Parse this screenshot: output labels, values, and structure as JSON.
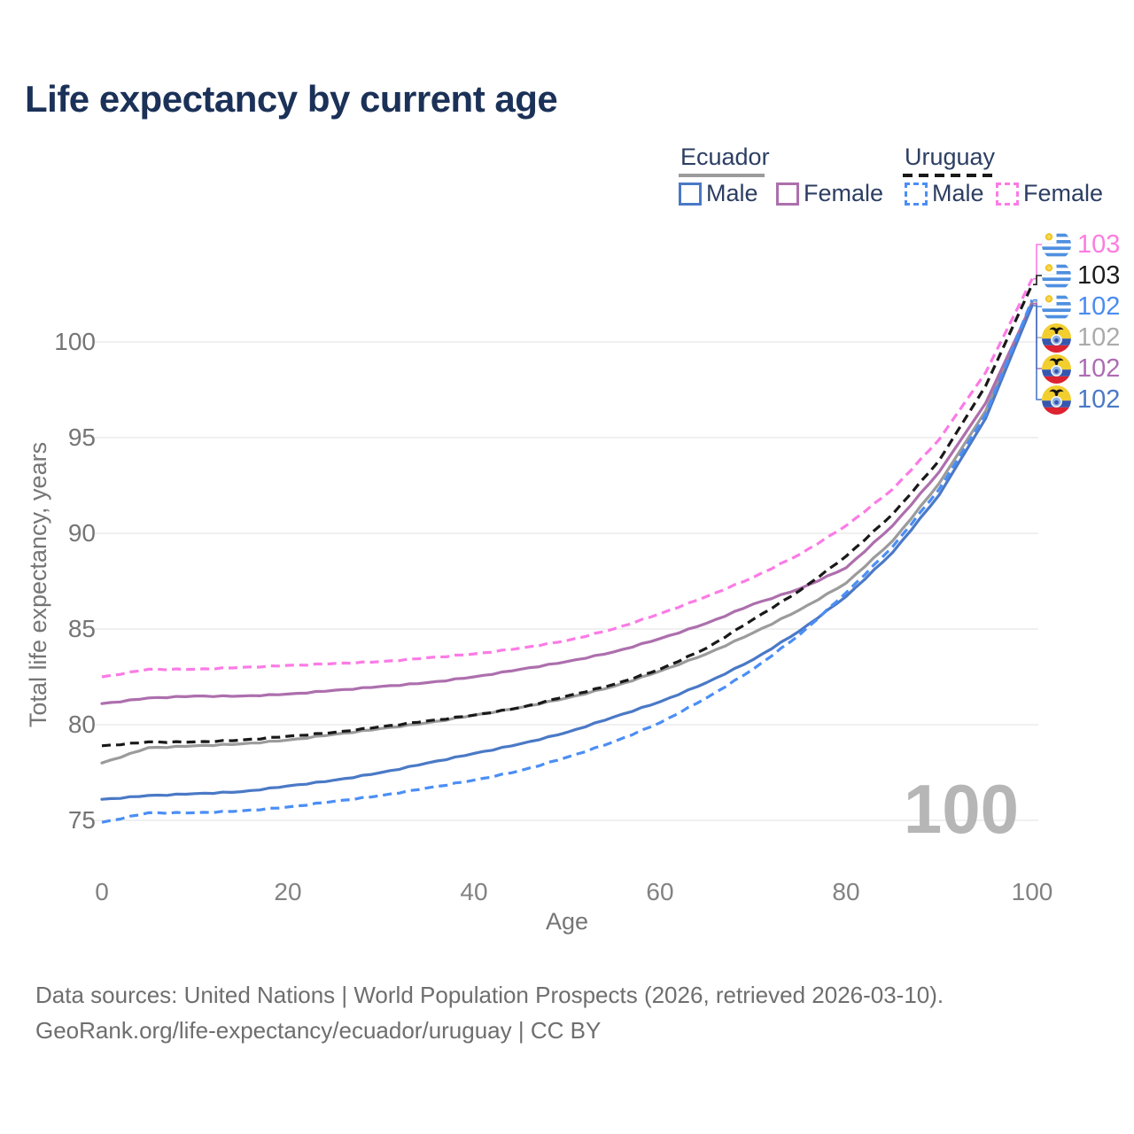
{
  "title": "Life expectancy by current age",
  "legend": {
    "groups": [
      {
        "label": "Ecuador",
        "line_style": "solid",
        "underline_color": "#9b9b9b",
        "items": [
          {
            "label": "Male",
            "color": "#4a79c6",
            "dashed": false
          },
          {
            "label": "Female",
            "color": "#ad6fad",
            "dashed": false
          }
        ]
      },
      {
        "label": "Uruguay",
        "line_style": "dashed",
        "underline_color": "#191919",
        "items": [
          {
            "label": "Male",
            "color": "#4b8ef5",
            "dashed": true
          },
          {
            "label": "Female",
            "color": "#fb7be5",
            "dashed": true
          }
        ]
      }
    ]
  },
  "chart_data": {
    "type": "line",
    "title": "Life expectancy by current age",
    "xlabel": "Age",
    "ylabel": "Total life expectancy, years",
    "xlim": [
      0,
      100
    ],
    "ylim": [
      74,
      104
    ],
    "xticks": [
      0,
      20,
      40,
      60,
      80,
      100
    ],
    "yticks": [
      75,
      80,
      85,
      90,
      95,
      100
    ],
    "grid": "horizontal",
    "legend_position": "top-right",
    "x": [
      0,
      5,
      10,
      15,
      20,
      25,
      30,
      35,
      40,
      45,
      50,
      55,
      60,
      65,
      70,
      75,
      80,
      85,
      90,
      95,
      100
    ],
    "series": [
      {
        "name": "Ecuador Total",
        "country": "Ecuador",
        "sex": "total",
        "color": "#9b9b9b",
        "label_color": "#ababab",
        "dashed": false,
        "flag": "ecuador",
        "end_label": "102",
        "label_row": 3,
        "values": [
          78.0,
          78.8,
          78.9,
          79.0,
          79.2,
          79.5,
          79.8,
          80.1,
          80.5,
          80.9,
          81.4,
          82.0,
          82.8,
          83.7,
          84.8,
          86.0,
          87.4,
          89.6,
          92.6,
          96.4,
          102.1
        ]
      },
      {
        "name": "Ecuador Female",
        "country": "Ecuador",
        "sex": "female",
        "color": "#ad6fad",
        "label_color": "#ae6cb4",
        "dashed": false,
        "flag": "ecuador",
        "end_label": "102",
        "label_row": 4,
        "values": [
          81.1,
          81.4,
          81.5,
          81.5,
          81.6,
          81.8,
          82.0,
          82.2,
          82.5,
          82.9,
          83.3,
          83.8,
          84.5,
          85.3,
          86.3,
          87.1,
          88.2,
          90.4,
          93.2,
          96.8,
          102.0
        ]
      },
      {
        "name": "Ecuador Male",
        "country": "Ecuador",
        "sex": "male",
        "color": "#4a79c6",
        "label_color": "#4a79c6",
        "dashed": false,
        "flag": "ecuador",
        "end_label": "102",
        "label_row": 5,
        "values": [
          76.1,
          76.3,
          76.4,
          76.5,
          76.8,
          77.1,
          77.5,
          78.0,
          78.5,
          79.0,
          79.6,
          80.4,
          81.2,
          82.2,
          83.4,
          84.9,
          86.7,
          89.0,
          92.0,
          96.0,
          101.9
        ]
      },
      {
        "name": "Uruguay Total",
        "country": "Uruguay",
        "sex": "total",
        "color": "#191919",
        "label_color": "#1c1c1c",
        "dashed": true,
        "flag": "uruguay",
        "end_label": "103",
        "label_row": 1,
        "values": [
          78.9,
          79.1,
          79.1,
          79.2,
          79.4,
          79.6,
          79.9,
          80.2,
          80.5,
          80.9,
          81.5,
          82.1,
          82.9,
          84.0,
          85.5,
          87.0,
          88.8,
          91.0,
          93.8,
          97.7,
          103.0
        ]
      },
      {
        "name": "Uruguay Male",
        "country": "Uruguay",
        "sex": "male",
        "color": "#4b8ef5",
        "label_color": "#4b8bf0",
        "dashed": true,
        "flag": "uruguay",
        "end_label": "102",
        "label_row": 2,
        "values": [
          74.9,
          75.4,
          75.4,
          75.5,
          75.7,
          76.0,
          76.3,
          76.7,
          77.1,
          77.6,
          78.3,
          79.1,
          80.1,
          81.4,
          82.9,
          84.7,
          86.9,
          89.3,
          92.3,
          96.2,
          102.2
        ]
      },
      {
        "name": "Uruguay Female",
        "country": "Uruguay",
        "sex": "female",
        "color": "#fb7be5",
        "label_color": "#fc7ce1",
        "dashed": true,
        "flag": "uruguay",
        "end_label": "103",
        "label_row": 0,
        "values": [
          82.5,
          82.9,
          82.9,
          83.0,
          83.1,
          83.2,
          83.3,
          83.5,
          83.7,
          84.0,
          84.4,
          85.0,
          85.8,
          86.7,
          87.7,
          88.9,
          90.4,
          92.3,
          94.9,
          98.4,
          103.3
        ]
      }
    ]
  },
  "watermark": "100",
  "footer": {
    "line1": "Data sources: United Nations | World Population Prospects (2026, retrieved 2026-03-10).",
    "line2": "GeoRank.org/life-expectancy/ecuador/uruguay | CC BY"
  }
}
